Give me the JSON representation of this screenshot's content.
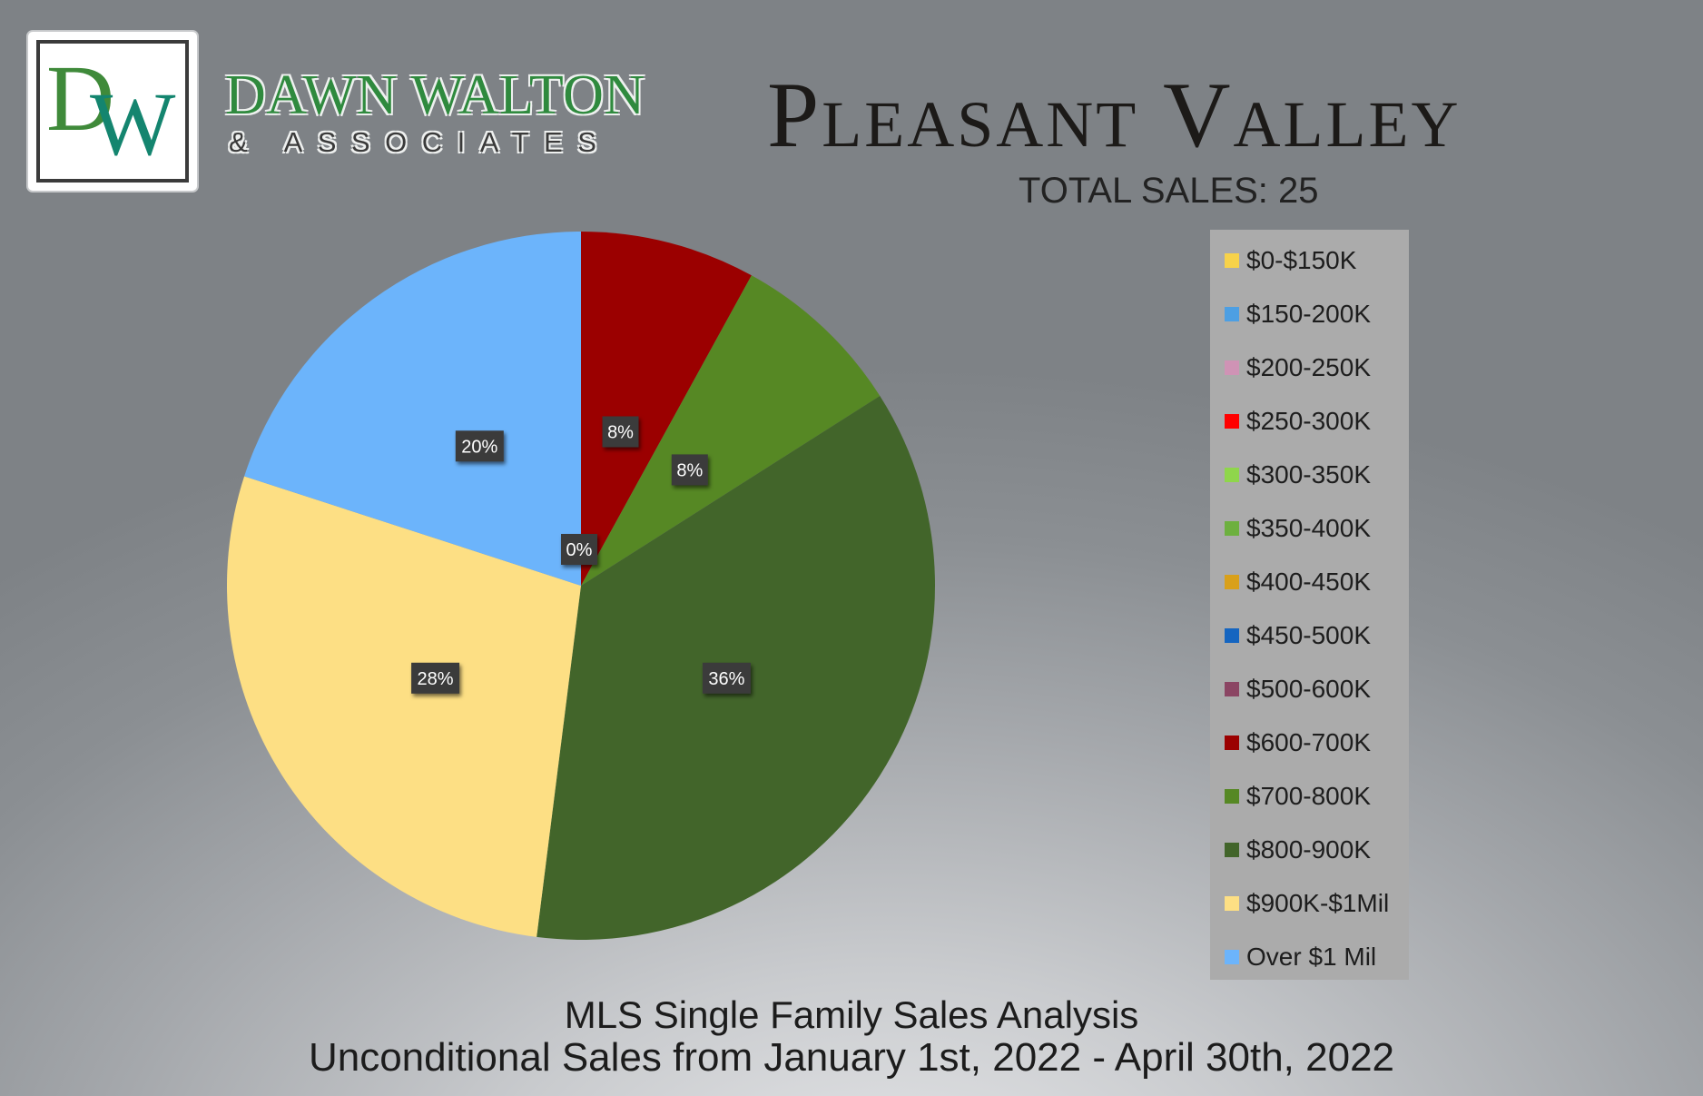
{
  "brand": {
    "name": "DAWN WALTON",
    "subtitle": "& ASSOCIATES",
    "logo_letters": "DW"
  },
  "header": {
    "title": "Pleasant Valley",
    "total_sales": "TOTAL SALES: 25"
  },
  "footer": {
    "line1": "MLS Single Family Sales Analysis",
    "line2": "Unconditional Sales from January 1st, 2022 - April 30th, 2022"
  },
  "chart_data": {
    "type": "pie",
    "title": "Pleasant Valley",
    "subtitle": "TOTAL SALES: 25",
    "legend_position": "right",
    "categories": [
      "$0-$150K",
      "$150-200K",
      "$200-250K",
      "$250-300K",
      "$300-350K",
      "$350-400K",
      "$400-450K",
      "$450-500K",
      "$500-600K",
      "$600-700K",
      "$700-800K",
      "$800-900K",
      "$900K-$1Mil",
      "Over $1 Mil"
    ],
    "values": [
      0,
      0,
      0,
      0,
      0,
      0,
      0,
      0,
      0,
      8,
      8,
      36,
      28,
      20
    ],
    "labels": [
      "0%",
      "",
      "",
      "",
      "",
      "",
      "",
      "",
      "",
      "8%",
      "8%",
      "36%",
      "28%",
      "20%"
    ],
    "colors": [
      "#f7d24a",
      "#4d9fe3",
      "#cf93b5",
      "#ff0000",
      "#8fd64b",
      "#6db03f",
      "#d9a01a",
      "#1565c0",
      "#8b4563",
      "#9b0000",
      "#568824",
      "#42652a",
      "#fddf84",
      "#6cb4fb"
    ]
  }
}
